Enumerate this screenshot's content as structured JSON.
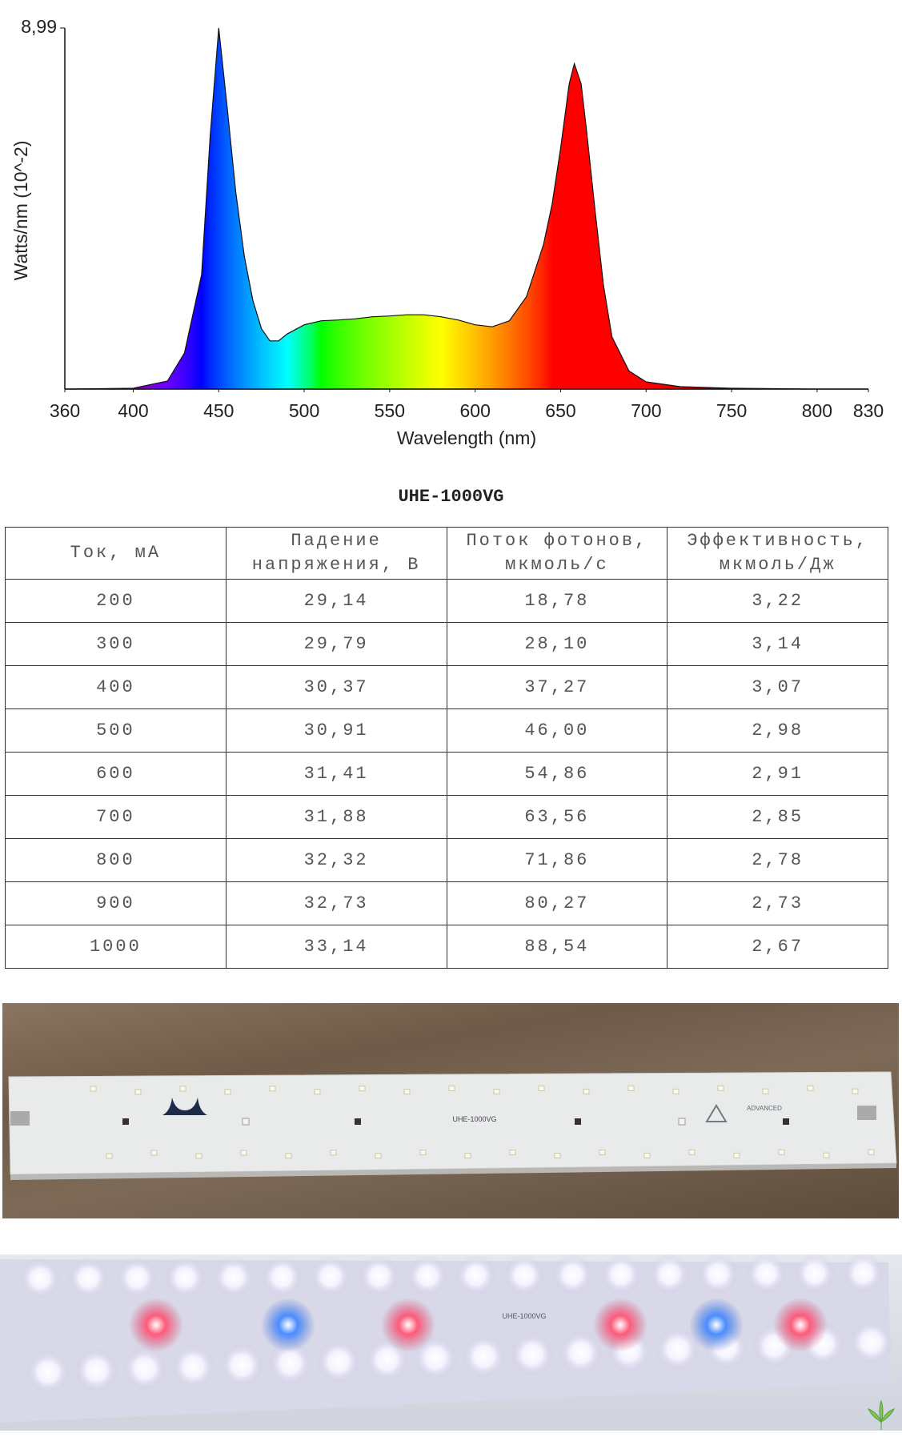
{
  "chart_data": {
    "type": "area",
    "ylabel": "Watts/nm (10^-2)",
    "xlabel": "Wavelength (nm)",
    "x": [
      360,
      400,
      420,
      430,
      440,
      445,
      450,
      455,
      460,
      465,
      470,
      475,
      480,
      485,
      490,
      500,
      510,
      520,
      530,
      540,
      550,
      560,
      570,
      580,
      590,
      600,
      610,
      620,
      630,
      640,
      645,
      650,
      655,
      658,
      662,
      665,
      670,
      675,
      680,
      690,
      700,
      720,
      750,
      800,
      830
    ],
    "values": [
      0,
      0.02,
      0.2,
      0.9,
      2.85,
      6.3,
      8.99,
      7.0,
      4.9,
      3.3,
      2.2,
      1.5,
      1.2,
      1.2,
      1.37,
      1.6,
      1.7,
      1.72,
      1.75,
      1.8,
      1.82,
      1.85,
      1.85,
      1.8,
      1.72,
      1.6,
      1.55,
      1.7,
      2.3,
      3.6,
      4.6,
      6.0,
      7.6,
      8.1,
      7.6,
      6.5,
      4.5,
      2.6,
      1.3,
      0.45,
      0.18,
      0.06,
      0.02,
      0,
      0
    ],
    "xlim": [
      360,
      830
    ],
    "xticks": [
      360,
      400,
      450,
      500,
      550,
      600,
      650,
      700,
      750,
      800,
      830
    ],
    "ylim": [
      0,
      8.99
    ],
    "yticks": [
      {
        "value": 8.99,
        "label": "8,99"
      }
    ],
    "grid": false
  },
  "table": {
    "title": "UHE-1000VG",
    "headers": [
      "Ток, мА",
      "Падение\nнапряжения, В",
      "Поток фотонов,\nмкмоль/с",
      "Эффективность,\nмкмоль/Дж"
    ],
    "rows": [
      [
        "200",
        "29,14",
        "18,78",
        "3,22"
      ],
      [
        "300",
        "29,79",
        "28,10",
        "3,14"
      ],
      [
        "400",
        "30,37",
        "37,27",
        "3,07"
      ],
      [
        "500",
        "30,91",
        "46,00",
        "2,98"
      ],
      [
        "600",
        "31,41",
        "54,86",
        "2,91"
      ],
      [
        "700",
        "31,88",
        "63,56",
        "2,85"
      ],
      [
        "800",
        "32,32",
        "71,86",
        "2,78"
      ],
      [
        "900",
        "32,73",
        "80,27",
        "2,73"
      ],
      [
        "1000",
        "33,14",
        "88,54",
        "2,67"
      ]
    ]
  },
  "photos": {
    "board_label": "UHE-1000VG",
    "brand": "ADVANCED"
  }
}
